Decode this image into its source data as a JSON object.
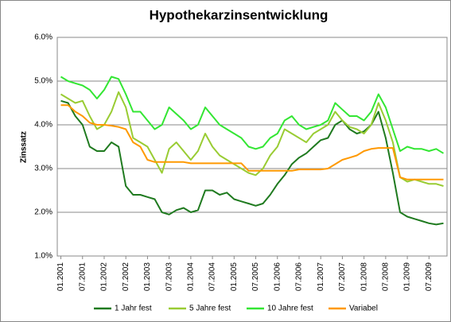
{
  "chart_data": {
    "type": "line",
    "title": "Hypothekarzinsentwicklung",
    "y_label": "Zinssatz",
    "categories": [
      "01.2001",
      null,
      null,
      "07.2001",
      null,
      null,
      "01.2002",
      null,
      null,
      "07.2002",
      null,
      null,
      "01.2003",
      null,
      null,
      "07.2003",
      null,
      null,
      "01.2004",
      null,
      null,
      "07.2004",
      null,
      null,
      "01.2005",
      null,
      null,
      "07.2005",
      null,
      null,
      "01.2006",
      null,
      null,
      "07.2006",
      null,
      null,
      "01.2007",
      null,
      null,
      "07.2007",
      null,
      null,
      "01.2008",
      null,
      null,
      "07.2008",
      null,
      null,
      "01.2009",
      null,
      null,
      "07.2009",
      null,
      null
    ],
    "series": [
      {
        "name": "1 Jahr fest",
        "color": "#1f7a1f",
        "values": [
          4.55,
          4.5,
          4.2,
          4.0,
          3.5,
          3.4,
          3.4,
          3.6,
          3.5,
          2.6,
          2.4,
          2.4,
          2.35,
          2.3,
          2.0,
          1.95,
          2.05,
          2.1,
          2.0,
          2.05,
          2.5,
          2.5,
          2.4,
          2.45,
          2.3,
          2.25,
          2.2,
          2.15,
          2.2,
          2.4,
          2.65,
          2.85,
          3.1,
          3.25,
          3.35,
          3.5,
          3.65,
          3.7,
          4.0,
          4.1,
          3.9,
          3.8,
          3.85,
          4.0,
          4.3,
          3.7,
          2.9,
          2.0,
          1.9,
          1.85,
          1.8,
          1.75,
          1.72,
          1.75
        ]
      },
      {
        "name": "5 Jahre fest",
        "color": "#99cc33",
        "values": [
          4.7,
          4.6,
          4.5,
          4.55,
          4.2,
          3.9,
          4.0,
          4.3,
          4.75,
          4.4,
          3.7,
          3.6,
          3.5,
          3.2,
          2.9,
          3.45,
          3.6,
          3.4,
          3.2,
          3.4,
          3.8,
          3.5,
          3.3,
          3.2,
          3.1,
          3.0,
          2.9,
          2.85,
          3.0,
          3.3,
          3.5,
          3.9,
          3.8,
          3.7,
          3.6,
          3.8,
          3.9,
          4.0,
          4.3,
          4.1,
          3.95,
          3.9,
          3.8,
          4.0,
          4.5,
          4.1,
          3.6,
          2.8,
          2.7,
          2.75,
          2.7,
          2.65,
          2.65,
          2.6
        ]
      },
      {
        "name": "10 Jahre fest",
        "color": "#33e633",
        "values": [
          5.1,
          5.0,
          4.95,
          4.9,
          4.8,
          4.6,
          4.8,
          5.1,
          5.05,
          4.7,
          4.3,
          4.3,
          4.1,
          3.9,
          4.0,
          4.4,
          4.25,
          4.1,
          3.9,
          4.0,
          4.4,
          4.2,
          4.0,
          3.9,
          3.8,
          3.7,
          3.5,
          3.45,
          3.5,
          3.7,
          3.8,
          4.1,
          4.2,
          4.0,
          3.9,
          3.95,
          4.0,
          4.1,
          4.5,
          4.35,
          4.2,
          4.2,
          4.1,
          4.3,
          4.7,
          4.4,
          3.9,
          3.4,
          3.5,
          3.45,
          3.45,
          3.4,
          3.45,
          3.35
        ]
      },
      {
        "name": "Variabel",
        "color": "#ff9900",
        "values": [
          4.45,
          4.45,
          4.3,
          4.2,
          4.05,
          4.0,
          4.0,
          3.98,
          3.95,
          3.9,
          3.6,
          3.5,
          3.2,
          3.15,
          3.15,
          3.15,
          3.15,
          3.15,
          3.12,
          3.12,
          3.12,
          3.12,
          3.12,
          3.12,
          3.12,
          3.12,
          2.95,
          2.95,
          2.95,
          2.95,
          2.95,
          2.95,
          2.95,
          2.98,
          2.98,
          2.98,
          2.98,
          3.0,
          3.1,
          3.2,
          3.25,
          3.3,
          3.4,
          3.45,
          3.47,
          3.47,
          3.47,
          2.8,
          2.75,
          2.75,
          2.75,
          2.75,
          2.75,
          2.75
        ]
      }
    ],
    "ylim": [
      1,
      6
    ],
    "yticks": [
      {
        "value": 1,
        "label": "1.0%"
      },
      {
        "value": 2,
        "label": "2.0%"
      },
      {
        "value": 3,
        "label": "3.0%"
      },
      {
        "value": 4,
        "label": "4.0%"
      },
      {
        "value": 5,
        "label": "5.0%"
      },
      {
        "value": 6,
        "label": "6.0%"
      }
    ],
    "grid": true,
    "legend": "bottom"
  }
}
